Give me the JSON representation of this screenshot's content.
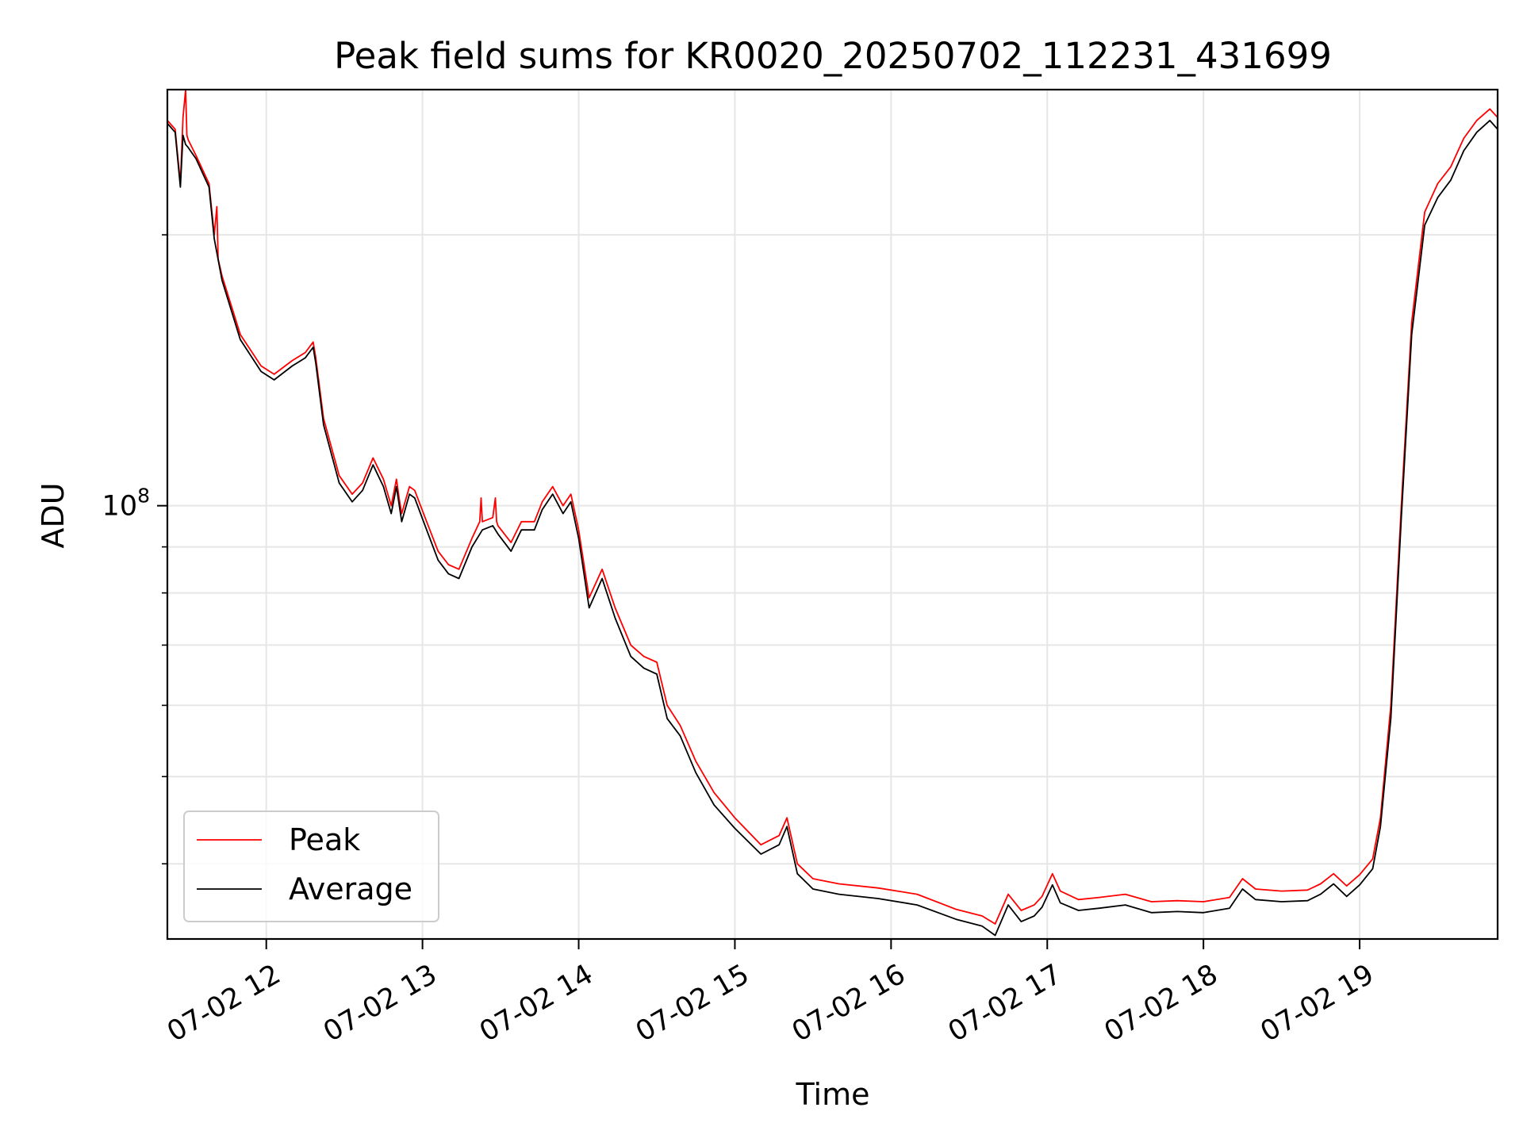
{
  "chart_data": {
    "type": "line",
    "title": "Peak field sums for KR0020_20250702_112231_431699",
    "xlabel": "Time",
    "ylabel": "ADU",
    "y_scale": "log",
    "x_range": [
      "07-02 11:22",
      "07-02 19:53"
    ],
    "ylim": [
      33000000,
      290000000
    ],
    "x_ticks": [
      "07-02 12",
      "07-02 13",
      "07-02 14",
      "07-02 15",
      "07-02 16",
      "07-02 17",
      "07-02 18",
      "07-02 19"
    ],
    "y_major_tick": {
      "label_base": "10",
      "label_exp": "8",
      "value": 100000000
    },
    "y_minor_ticks": [
      40000000,
      50000000,
      60000000,
      70000000,
      80000000,
      90000000,
      200000000
    ],
    "grid": true,
    "legend_position": "lower-left",
    "series": [
      {
        "name": "Peak",
        "color": "#ff0000",
        "x": [
          "07-02 11:22",
          "07-02 11:25",
          "07-02 11:27",
          "07-02 11:28",
          "07-02 11:29",
          "07-02 11:29:30",
          "07-02 11:30",
          "07-02 11:33",
          "07-02 11:38",
          "07-02 11:40",
          "07-02 11:41",
          "07-02 11:41:30",
          "07-02 11:43",
          "07-02 11:50",
          "07-02 11:58",
          "07-02 12:03",
          "07-02 12:10",
          "07-02 12:15",
          "07-02 12:18",
          "07-02 12:19",
          "07-02 12:22",
          "07-02 12:28",
          "07-02 12:33",
          "07-02 12:37",
          "07-02 12:41",
          "07-02 12:45",
          "07-02 12:48",
          "07-02 12:50",
          "07-02 12:51",
          "07-02 12:52",
          "07-02 12:55",
          "07-02 12:57",
          "07-02 13:01",
          "07-02 13:06",
          "07-02 13:10",
          "07-02 13:14",
          "07-02 13:19",
          "07-02 13:22",
          "07-02 13:22:30",
          "07-02 13:23",
          "07-02 13:27",
          "07-02 13:28",
          "07-02 13:28:30",
          "07-02 13:29",
          "07-02 13:34",
          "07-02 13:38",
          "07-02 13:43",
          "07-02 13:46",
          "07-02 13:50",
          "07-02 13:54",
          "07-02 13:57",
          "07-02 14:00",
          "07-02 14:04",
          "07-02 14:09",
          "07-02 14:14",
          "07-02 14:20",
          "07-02 14:25",
          "07-02 14:30",
          "07-02 14:34",
          "07-02 14:39",
          "07-02 14:45",
          "07-02 14:52",
          "07-02 15:00",
          "07-02 15:10",
          "07-02 15:17",
          "07-02 15:20",
          "07-02 15:24",
          "07-02 15:30",
          "07-02 15:40",
          "07-02 15:55",
          "07-02 16:10",
          "07-02 16:25",
          "07-02 16:35",
          "07-02 16:40",
          "07-02 16:45",
          "07-02 16:50",
          "07-02 16:55",
          "07-02 16:58",
          "07-02 17:02",
          "07-02 17:05",
          "07-02 17:12",
          "07-02 17:20",
          "07-02 17:30",
          "07-02 17:40",
          "07-02 17:50",
          "07-02 18:00",
          "07-02 18:10",
          "07-02 18:15",
          "07-02 18:20",
          "07-02 18:30",
          "07-02 18:40",
          "07-02 18:45",
          "07-02 18:50",
          "07-02 18:55",
          "07-02 19:00",
          "07-02 19:05",
          "07-02 19:08",
          "07-02 19:12",
          "07-02 19:16",
          "07-02 19:20",
          "07-02 19:25",
          "07-02 19:30",
          "07-02 19:35",
          "07-02 19:40",
          "07-02 19:45",
          "07-02 19:50",
          "07-02 19:53"
        ],
        "y": [
          268000000,
          262000000,
          228000000,
          270000000,
          290000000,
          258000000,
          255000000,
          245000000,
          228000000,
          200000000,
          215000000,
          188000000,
          180000000,
          155000000,
          143000000,
          140000000,
          145000000,
          148000000,
          152000000,
          146000000,
          125000000,
          108000000,
          103000000,
          106000000,
          113000000,
          107000000,
          100000000,
          107000000,
          102000000,
          98000000,
          105000000,
          104000000,
          97000000,
          89000000,
          86000000,
          85000000,
          92000000,
          96000000,
          102000000,
          96000000,
          97000000,
          102000000,
          96000000,
          95000000,
          91000000,
          96000000,
          96000000,
          101000000,
          105000000,
          100000000,
          103000000,
          94000000,
          79000000,
          85000000,
          77000000,
          70000000,
          68000000,
          67000000,
          60000000,
          57000000,
          52000000,
          48000000,
          45000000,
          42000000,
          43000000,
          45000000,
          40000000,
          38500000,
          38000000,
          37600000,
          37000000,
          35600000,
          35000000,
          34300000,
          37000000,
          35500000,
          36000000,
          36800000,
          39000000,
          37300000,
          36500000,
          36700000,
          37000000,
          36300000,
          36400000,
          36300000,
          36700000,
          38500000,
          37500000,
          37300000,
          37400000,
          38000000,
          39000000,
          37800000,
          38900000,
          40500000,
          45000000,
          60000000,
          100000000,
          160000000,
          212000000,
          228000000,
          238000000,
          256000000,
          268000000,
          276000000,
          270000000
        ]
      },
      {
        "name": "Average",
        "color": "#000000",
        "x": [
          "07-02 11:22",
          "07-02 11:25",
          "07-02 11:27",
          "07-02 11:28",
          "07-02 11:29",
          "07-02 11:30",
          "07-02 11:33",
          "07-02 11:38",
          "07-02 11:40",
          "07-02 11:43",
          "07-02 11:50",
          "07-02 11:58",
          "07-02 12:03",
          "07-02 12:10",
          "07-02 12:15",
          "07-02 12:18",
          "07-02 12:19",
          "07-02 12:22",
          "07-02 12:28",
          "07-02 12:33",
          "07-02 12:37",
          "07-02 12:41",
          "07-02 12:45",
          "07-02 12:48",
          "07-02 12:50",
          "07-02 12:52",
          "07-02 12:55",
          "07-02 12:57",
          "07-02 13:01",
          "07-02 13:06",
          "07-02 13:10",
          "07-02 13:14",
          "07-02 13:19",
          "07-02 13:23",
          "07-02 13:27",
          "07-02 13:29",
          "07-02 13:34",
          "07-02 13:38",
          "07-02 13:43",
          "07-02 13:46",
          "07-02 13:50",
          "07-02 13:54",
          "07-02 13:57",
          "07-02 14:00",
          "07-02 14:04",
          "07-02 14:09",
          "07-02 14:14",
          "07-02 14:20",
          "07-02 14:25",
          "07-02 14:30",
          "07-02 14:34",
          "07-02 14:39",
          "07-02 14:45",
          "07-02 14:52",
          "07-02 15:00",
          "07-02 15:10",
          "07-02 15:17",
          "07-02 15:20",
          "07-02 15:24",
          "07-02 15:30",
          "07-02 15:40",
          "07-02 15:55",
          "07-02 16:10",
          "07-02 16:25",
          "07-02 16:35",
          "07-02 16:40",
          "07-02 16:45",
          "07-02 16:50",
          "07-02 16:55",
          "07-02 16:58",
          "07-02 17:02",
          "07-02 17:05",
          "07-02 17:12",
          "07-02 17:20",
          "07-02 17:30",
          "07-02 17:40",
          "07-02 17:50",
          "07-02 18:00",
          "07-02 18:10",
          "07-02 18:15",
          "07-02 18:20",
          "07-02 18:30",
          "07-02 18:40",
          "07-02 18:45",
          "07-02 18:50",
          "07-02 18:55",
          "07-02 19:00",
          "07-02 19:05",
          "07-02 19:08",
          "07-02 19:12",
          "07-02 19:16",
          "07-02 19:20",
          "07-02 19:25",
          "07-02 19:30",
          "07-02 19:35",
          "07-02 19:40",
          "07-02 19:45",
          "07-02 19:50",
          "07-02 19:53"
        ],
        "y": [
          266000000,
          260000000,
          226000000,
          258000000,
          252000000,
          250000000,
          243000000,
          226000000,
          198000000,
          178000000,
          153000000,
          141000000,
          138000000,
          143000000,
          146000000,
          150000000,
          144000000,
          123000000,
          106000000,
          101000000,
          104000000,
          111000000,
          105000000,
          98000000,
          105000000,
          96000000,
          103000000,
          102000000,
          95000000,
          87000000,
          84000000,
          83000000,
          90000000,
          94000000,
          95000000,
          93000000,
          89000000,
          94000000,
          94000000,
          99000000,
          103000000,
          98000000,
          101000000,
          92000000,
          77000000,
          83000000,
          75000000,
          68000000,
          66000000,
          65000000,
          58000000,
          55500000,
          50500000,
          46500000,
          43800000,
          41000000,
          42000000,
          44000000,
          39000000,
          37500000,
          37000000,
          36600000,
          36000000,
          34700000,
          34100000,
          33300000,
          36000000,
          34500000,
          35000000,
          35800000,
          37900000,
          36200000,
          35500000,
          35700000,
          36000000,
          35300000,
          35400000,
          35300000,
          35700000,
          37500000,
          36500000,
          36300000,
          36400000,
          37000000,
          38000000,
          36800000,
          37900000,
          39500000,
          44000000,
          58000000,
          97000000,
          155000000,
          205000000,
          220000000,
          230000000,
          248000000,
          260000000,
          268000000,
          262000000
        ]
      }
    ]
  }
}
